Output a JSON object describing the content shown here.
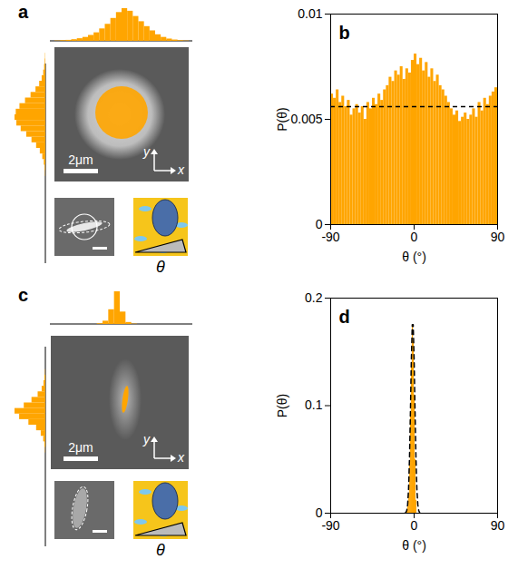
{
  "chart_data": [
    {
      "type": "histogram",
      "label": "b",
      "xlabel": "θ (°)",
      "ylabel": "P(θ)",
      "color": "#ffa500",
      "bins": [
        -90,
        -87,
        -84,
        -81,
        -78,
        -75,
        -72,
        -69,
        -66,
        -63,
        -60,
        -57,
        -54,
        -51,
        -48,
        -45,
        -42,
        -39,
        -36,
        -33,
        -30,
        -27,
        -24,
        -21,
        -18,
        -15,
        -12,
        -9,
        -6,
        -3,
        0,
        3,
        6,
        9,
        12,
        15,
        18,
        21,
        24,
        27,
        30,
        33,
        36,
        39,
        42,
        45,
        48,
        51,
        54,
        57,
        60,
        63,
        66,
        69,
        72,
        75,
        78,
        81,
        84,
        87,
        90
      ],
      "values": [
        0.0062,
        0.006,
        0.0064,
        0.0058,
        0.0061,
        0.0056,
        0.0059,
        0.0052,
        0.0055,
        0.0057,
        0.0053,
        0.0056,
        0.005,
        0.0058,
        0.0055,
        0.006,
        0.0057,
        0.0062,
        0.0059,
        0.0064,
        0.0066,
        0.007,
        0.0068,
        0.0073,
        0.0071,
        0.0075,
        0.0069,
        0.0074,
        0.0072,
        0.0078,
        0.0081,
        0.0076,
        0.0079,
        0.0073,
        0.0077,
        0.007,
        0.0074,
        0.0068,
        0.0071,
        0.0066,
        0.0064,
        0.0061,
        0.0058,
        0.0055,
        0.0052,
        0.0054,
        0.0049,
        0.0051,
        0.0053,
        0.005,
        0.0052,
        0.0055,
        0.0051,
        0.0058,
        0.0054,
        0.006,
        0.0057,
        0.0061,
        0.0063,
        0.0065
      ],
      "xlim": [
        -90,
        90
      ],
      "xticks": [
        -90,
        0,
        90
      ],
      "ylim": [
        0,
        0.01
      ],
      "yticks": [
        0,
        0.005,
        0.01
      ],
      "reference": {
        "value": 0.0056,
        "line_style": "dashed",
        "color": "#000000"
      }
    },
    {
      "type": "histogram",
      "label": "d",
      "xlabel": "θ (°)",
      "ylabel": "P(θ)",
      "color": "#ffa500",
      "bins": [
        -8,
        -7,
        -6,
        -5,
        -4,
        -3,
        -2,
        -1,
        0,
        1,
        2,
        3
      ],
      "values": [
        0.002,
        0.006,
        0.018,
        0.045,
        0.09,
        0.14,
        0.175,
        0.16,
        0.11,
        0.05,
        0.012
      ],
      "xlim": [
        -90,
        90
      ],
      "xticks": [
        -90,
        0,
        90
      ],
      "ylim": [
        0,
        0.2
      ],
      "yticks": [
        0,
        0.1,
        0.2
      ],
      "fit": {
        "x": [
          -10,
          -9,
          -8,
          -7,
          -6,
          -5,
          -4,
          -3,
          -2,
          -1,
          0,
          1,
          2,
          3,
          4,
          5,
          6
        ],
        "values": [
          0.0001,
          0.0005,
          0.0023,
          0.0079,
          0.0222,
          0.0508,
          0.0943,
          0.1427,
          0.1754,
          0.1754,
          0.1427,
          0.0943,
          0.0508,
          0.0222,
          0.0079,
          0.0023,
          0.0005
        ],
        "line_style": "dashed",
        "color": "#000000"
      }
    }
  ],
  "images": [
    {
      "label": "a",
      "scale_bar": "2μm",
      "axes": [
        "x",
        "y"
      ],
      "angle_label": "θ",
      "color": "#ffa500",
      "x_histogram": [
        1,
        2,
        3,
        5,
        8,
        12,
        18,
        26,
        38,
        52,
        70,
        88,
        100,
        92,
        76,
        60,
        45,
        32,
        20,
        12,
        7,
        4,
        2,
        1
      ],
      "y_histogram": [
        0,
        1,
        2,
        4,
        7,
        12,
        20,
        32,
        48,
        66,
        84,
        96,
        100,
        94,
        80,
        62,
        45,
        30,
        18,
        10,
        5,
        2,
        1,
        0
      ]
    },
    {
      "label": "c",
      "scale_bar": "2μm",
      "axes": [
        "x",
        "y"
      ],
      "angle_label": "θ",
      "color": "#ffa500",
      "x_histogram": [
        0,
        0,
        0,
        0,
        0,
        0,
        0,
        0,
        2,
        10,
        45,
        100,
        38,
        6,
        1,
        0,
        0,
        0,
        0,
        0,
        0,
        0,
        0,
        0
      ],
      "y_histogram": [
        0,
        0,
        0,
        0,
        0,
        0,
        1,
        3,
        6,
        12,
        25,
        45,
        70,
        100,
        85,
        55,
        30,
        15,
        7,
        3,
        1,
        0,
        0,
        0
      ]
    }
  ]
}
